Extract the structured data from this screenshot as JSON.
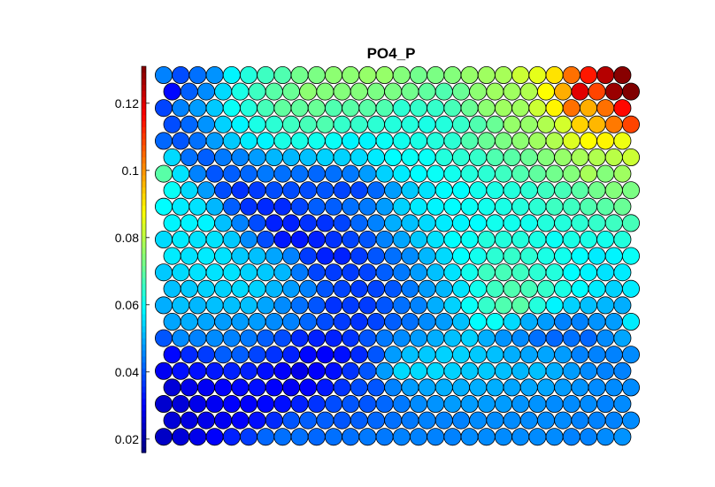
{
  "chart_data": {
    "type": "heatmap",
    "subtype": "som-hexagonal-component-plane",
    "title": "PO4_P",
    "grid": {
      "rows": 23,
      "cols": 28
    },
    "colorbar": {
      "position": "left",
      "min": 0.016,
      "max": 0.131,
      "ticks": [
        0.02,
        0.04,
        0.06,
        0.08,
        0.1,
        0.12
      ],
      "tick_labels": [
        "0.02",
        "0.04",
        "0.06",
        "0.08",
        "0.1",
        "0.12"
      ],
      "colormap": "jet"
    },
    "values": [
      [
        0.045,
        0.039,
        0.043,
        0.047,
        0.058,
        0.063,
        0.066,
        0.068,
        0.072,
        0.073,
        0.075,
        0.075,
        0.076,
        0.076,
        0.074,
        0.072,
        0.073,
        0.074,
        0.076,
        0.077,
        0.078,
        0.082,
        0.085,
        0.091,
        0.104,
        0.114,
        0.125,
        0.13
      ],
      [
        0.031,
        0.041,
        0.046,
        0.055,
        0.062,
        0.066,
        0.069,
        0.071,
        0.075,
        0.074,
        0.074,
        0.074,
        0.073,
        0.073,
        0.072,
        0.07,
        0.068,
        0.071,
        0.075,
        0.077,
        0.077,
        0.079,
        0.088,
        0.097,
        0.12,
        0.109,
        0.128,
        0.131
      ],
      [
        0.038,
        0.045,
        0.048,
        0.053,
        0.06,
        0.063,
        0.067,
        0.07,
        0.07,
        0.071,
        0.068,
        0.069,
        0.069,
        0.068,
        0.064,
        0.065,
        0.065,
        0.067,
        0.071,
        0.075,
        0.077,
        0.077,
        0.082,
        0.089,
        0.104,
        0.097,
        0.104,
        0.116
      ],
      [
        0.039,
        0.042,
        0.047,
        0.054,
        0.058,
        0.062,
        0.064,
        0.066,
        0.067,
        0.068,
        0.065,
        0.065,
        0.064,
        0.063,
        0.063,
        0.062,
        0.063,
        0.065,
        0.068,
        0.071,
        0.076,
        0.076,
        0.079,
        0.083,
        0.093,
        0.096,
        0.103,
        0.109
      ],
      [
        0.042,
        0.04,
        0.043,
        0.048,
        0.053,
        0.057,
        0.058,
        0.062,
        0.062,
        0.061,
        0.06,
        0.058,
        0.058,
        0.06,
        0.061,
        0.062,
        0.063,
        0.064,
        0.068,
        0.071,
        0.073,
        0.075,
        0.077,
        0.079,
        0.084,
        0.088,
        0.089,
        0.086
      ],
      [
        0.055,
        0.043,
        0.041,
        0.044,
        0.045,
        0.048,
        0.051,
        0.051,
        0.052,
        0.054,
        0.054,
        0.055,
        0.057,
        0.059,
        0.06,
        0.06,
        0.063,
        0.064,
        0.065,
        0.068,
        0.069,
        0.071,
        0.074,
        0.076,
        0.078,
        0.079,
        0.08,
        0.082
      ],
      [
        0.069,
        0.056,
        0.045,
        0.04,
        0.041,
        0.042,
        0.044,
        0.043,
        0.043,
        0.042,
        0.043,
        0.044,
        0.048,
        0.054,
        0.057,
        0.059,
        0.06,
        0.061,
        0.063,
        0.064,
        0.066,
        0.068,
        0.07,
        0.072,
        0.074,
        0.078,
        0.074,
        0.077
      ],
      [
        0.06,
        0.055,
        0.048,
        0.039,
        0.036,
        0.037,
        0.039,
        0.039,
        0.039,
        0.04,
        0.038,
        0.038,
        0.042,
        0.048,
        0.053,
        0.056,
        0.059,
        0.059,
        0.061,
        0.062,
        0.063,
        0.064,
        0.066,
        0.067,
        0.069,
        0.072,
        0.074,
        0.073
      ],
      [
        0.059,
        0.057,
        0.056,
        0.051,
        0.041,
        0.036,
        0.035,
        0.035,
        0.038,
        0.041,
        0.041,
        0.043,
        0.044,
        0.048,
        0.054,
        0.057,
        0.058,
        0.059,
        0.06,
        0.061,
        0.062,
        0.063,
        0.064,
        0.066,
        0.066,
        0.068,
        0.069,
        0.071
      ],
      [
        0.058,
        0.058,
        0.058,
        0.052,
        0.045,
        0.039,
        0.034,
        0.034,
        0.036,
        0.036,
        0.038,
        0.042,
        0.045,
        0.05,
        0.052,
        0.055,
        0.057,
        0.058,
        0.059,
        0.061,
        0.061,
        0.061,
        0.063,
        0.063,
        0.064,
        0.065,
        0.066,
        0.067
      ],
      [
        0.055,
        0.057,
        0.056,
        0.056,
        0.053,
        0.046,
        0.039,
        0.033,
        0.033,
        0.034,
        0.036,
        0.038,
        0.04,
        0.045,
        0.049,
        0.053,
        0.056,
        0.059,
        0.06,
        0.063,
        0.063,
        0.063,
        0.062,
        0.06,
        0.062,
        0.062,
        0.061,
        0.063
      ],
      [
        0.057,
        0.056,
        0.057,
        0.056,
        0.053,
        0.052,
        0.049,
        0.045,
        0.037,
        0.034,
        0.034,
        0.037,
        0.04,
        0.043,
        0.046,
        0.051,
        0.055,
        0.059,
        0.061,
        0.064,
        0.065,
        0.064,
        0.062,
        0.061,
        0.059,
        0.057,
        0.058,
        0.06
      ],
      [
        0.053,
        0.055,
        0.056,
        0.056,
        0.056,
        0.054,
        0.053,
        0.051,
        0.044,
        0.038,
        0.037,
        0.037,
        0.038,
        0.041,
        0.044,
        0.048,
        0.052,
        0.056,
        0.061,
        0.066,
        0.067,
        0.066,
        0.064,
        0.063,
        0.059,
        0.058,
        0.056,
        0.057
      ],
      [
        0.052,
        0.053,
        0.054,
        0.054,
        0.055,
        0.054,
        0.051,
        0.048,
        0.045,
        0.04,
        0.038,
        0.037,
        0.038,
        0.04,
        0.044,
        0.048,
        0.051,
        0.056,
        0.061,
        0.066,
        0.068,
        0.067,
        0.065,
        0.062,
        0.059,
        0.057,
        0.054,
        0.057
      ],
      [
        0.05,
        0.052,
        0.051,
        0.052,
        0.052,
        0.052,
        0.049,
        0.046,
        0.043,
        0.04,
        0.036,
        0.037,
        0.037,
        0.04,
        0.043,
        0.045,
        0.05,
        0.054,
        0.06,
        0.065,
        0.068,
        0.069,
        0.063,
        0.058,
        0.054,
        0.052,
        0.051,
        0.05
      ],
      [
        0.049,
        0.05,
        0.049,
        0.048,
        0.048,
        0.048,
        0.046,
        0.045,
        0.042,
        0.039,
        0.037,
        0.036,
        0.038,
        0.041,
        0.043,
        0.046,
        0.048,
        0.052,
        0.059,
        0.06,
        0.055,
        0.05,
        0.048,
        0.045,
        0.045,
        0.047,
        0.048,
        0.057
      ],
      [
        0.04,
        0.046,
        0.045,
        0.046,
        0.045,
        0.044,
        0.041,
        0.039,
        0.035,
        0.034,
        0.034,
        0.036,
        0.04,
        0.044,
        0.046,
        0.048,
        0.05,
        0.052,
        0.054,
        0.05,
        0.047,
        0.046,
        0.043,
        0.042,
        0.043,
        0.042,
        0.046,
        0.049
      ],
      [
        0.031,
        0.035,
        0.037,
        0.041,
        0.041,
        0.038,
        0.036,
        0.034,
        0.031,
        0.03,
        0.032,
        0.035,
        0.04,
        0.048,
        0.052,
        0.053,
        0.054,
        0.054,
        0.053,
        0.052,
        0.05,
        0.049,
        0.049,
        0.048,
        0.045,
        0.045,
        0.045,
        0.046
      ],
      [
        0.029,
        0.032,
        0.032,
        0.033,
        0.034,
        0.034,
        0.032,
        0.03,
        0.028,
        0.03,
        0.032,
        0.036,
        0.04,
        0.048,
        0.055,
        0.055,
        0.055,
        0.054,
        0.053,
        0.053,
        0.052,
        0.051,
        0.052,
        0.05,
        0.048,
        0.046,
        0.045,
        0.045
      ],
      [
        0.026,
        0.028,
        0.029,
        0.03,
        0.031,
        0.032,
        0.03,
        0.029,
        0.03,
        0.033,
        0.036,
        0.039,
        0.04,
        0.045,
        0.048,
        0.049,
        0.05,
        0.05,
        0.05,
        0.05,
        0.049,
        0.049,
        0.049,
        0.048,
        0.047,
        0.046,
        0.046,
        0.046
      ],
      [
        0.025,
        0.026,
        0.028,
        0.029,
        0.03,
        0.03,
        0.031,
        0.032,
        0.034,
        0.036,
        0.039,
        0.04,
        0.04,
        0.042,
        0.044,
        0.046,
        0.047,
        0.048,
        0.048,
        0.048,
        0.048,
        0.047,
        0.047,
        0.046,
        0.046,
        0.046,
        0.045,
        0.046
      ],
      [
        0.026,
        0.027,
        0.028,
        0.029,
        0.03,
        0.032,
        0.035,
        0.04,
        0.041,
        0.041,
        0.04,
        0.041,
        0.042,
        0.043,
        0.044,
        0.045,
        0.045,
        0.045,
        0.046,
        0.046,
        0.046,
        0.046,
        0.046,
        0.046,
        0.045,
        0.045,
        0.045,
        0.046
      ],
      [
        0.024,
        0.026,
        0.028,
        0.03,
        0.034,
        0.037,
        0.042,
        0.043,
        0.043,
        0.042,
        0.043,
        0.043,
        0.044,
        0.044,
        0.045,
        0.045,
        0.045,
        0.045,
        0.046,
        0.046,
        0.046,
        0.046,
        0.046,
        0.046,
        0.045,
        0.045,
        0.046,
        0.047
      ]
    ]
  }
}
